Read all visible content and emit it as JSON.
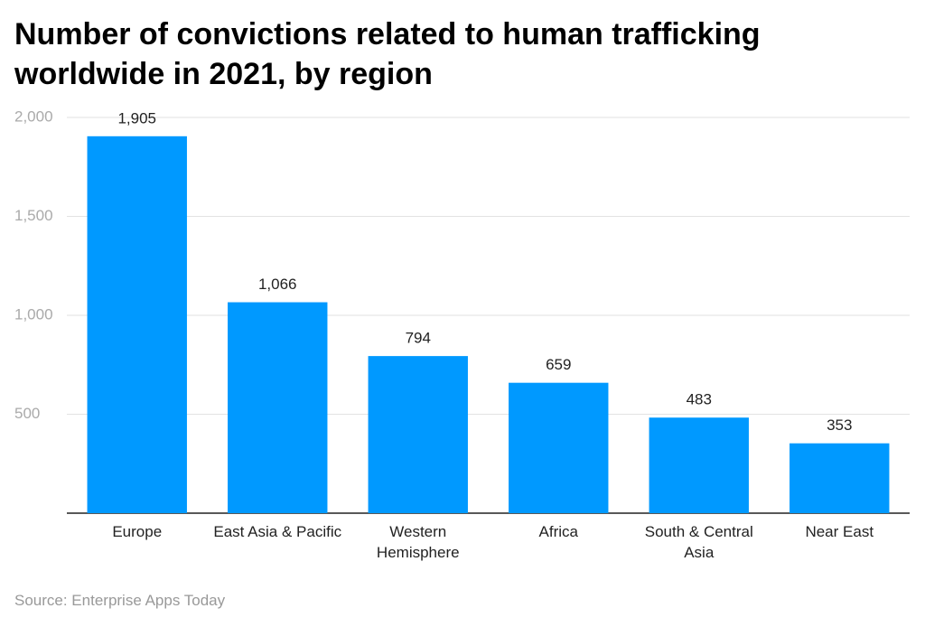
{
  "chart_data": {
    "type": "bar",
    "title": "Number of convictions related to human trafficking worldwide in 2021, by region",
    "categories": [
      "Europe",
      "East Asia & Pacific",
      "Western Hemisphere",
      "Africa",
      "South & Central Asia",
      "Near East"
    ],
    "values": [
      1905,
      1066,
      794,
      659,
      483,
      353
    ],
    "value_labels": [
      "1,905",
      "1,066",
      "794",
      "659",
      "483",
      "353"
    ],
    "color": "#0099ff",
    "ylim": [
      0,
      2000
    ],
    "yticks": [
      500,
      {
        "value": 1000,
        "label": "1,000"
      },
      {
        "value": 1500,
        "label": "1,500"
      },
      {
        "value": 2000,
        "label": "2,000"
      }
    ],
    "grid": true,
    "source": "Source: Enterprise Apps Today"
  }
}
